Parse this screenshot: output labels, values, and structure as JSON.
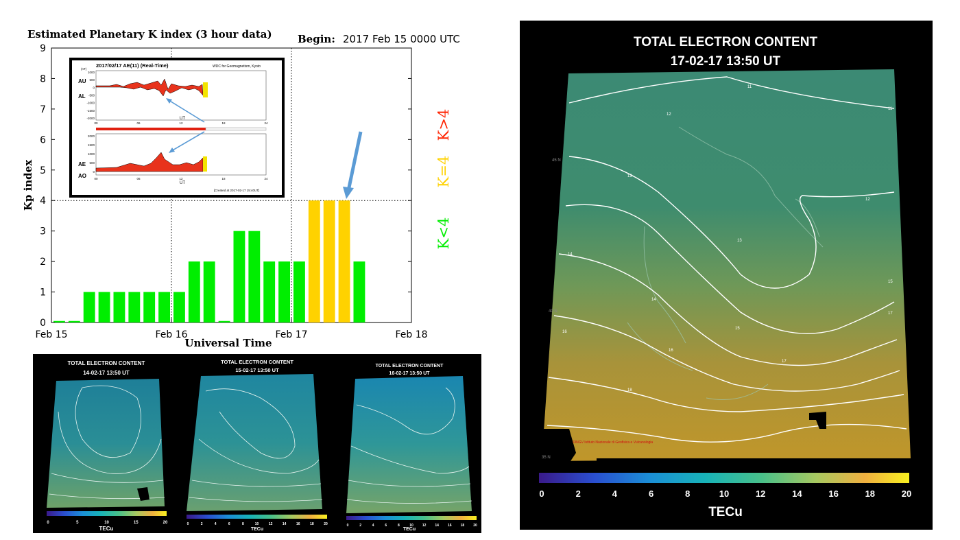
{
  "chart_data": [
    {
      "type": "bar",
      "title": "Estimated Planetary K index (3 hour data)",
      "begin_label": "Begin:",
      "begin_value": "2017 Feb 15 0000 UTC",
      "xlabel": "Universal Time",
      "ylabel": "Kp index",
      "ylim": [
        0,
        9
      ],
      "y_ticks": [
        "0",
        "1",
        "2",
        "3",
        "4",
        "5",
        "6",
        "7",
        "8",
        "9"
      ],
      "x_ticks": [
        "Feb 15",
        "Feb 16",
        "Feb 17",
        "Feb 18"
      ],
      "grid": "dotted at Kp 4 and day boundaries",
      "values": [
        0.05,
        0.05,
        1,
        1,
        1,
        1,
        1,
        1,
        1,
        2,
        2,
        0.05,
        3,
        3,
        2,
        2,
        2,
        4,
        4,
        4,
        2
      ],
      "colors": [
        "#00ee00",
        "#00ee00",
        "#00ee00",
        "#00ee00",
        "#00ee00",
        "#00ee00",
        "#00ee00",
        "#00ee00",
        "#00ee00",
        "#00ee00",
        "#00ee00",
        "#00ee00",
        "#00ee00",
        "#00ee00",
        "#00ee00",
        "#00ee00",
        "#00ee00",
        "#ffd200",
        "#ffd200",
        "#ffd200",
        "#00ee00"
      ],
      "legend": [
        {
          "label": "K<4",
          "color": "#00ee00"
        },
        {
          "label": "K=4",
          "color": "#ffd200"
        },
        {
          "label": "K>4",
          "color": "#ff2200"
        }
      ]
    },
    {
      "type": "line",
      "title": "2017/02/17  AE(11) (Real-Time)",
      "source": "WDC for Geomagnetism, Kyoto",
      "panels": [
        {
          "series": [
            "AU",
            "AL"
          ],
          "y_ticks": [
            "1000",
            "500",
            "0",
            "-500",
            "-1000",
            "-1500",
            "-2000"
          ],
          "unit": "(nT)"
        },
        {
          "series": [
            "AE",
            "AO"
          ],
          "y_ticks": [
            "2000",
            "1500",
            "1000",
            "500",
            "0"
          ]
        }
      ],
      "x_ticks": [
        "00",
        "06",
        "12",
        "18",
        "24"
      ],
      "xlabel": "UT",
      "footer": "[Created at 2017-02-17 15:40UT]"
    }
  ],
  "tec_maps": {
    "main": {
      "title": "TOTAL ELECTRON CONTENT",
      "subtitle": "17-02-17   13:50   UT",
      "colorbar_ticks": [
        "0",
        "2",
        "4",
        "6",
        "8",
        "10",
        "12",
        "14",
        "16",
        "18",
        "20"
      ],
      "unit": "TECu",
      "contours": [
        "11",
        "11",
        "12",
        "12",
        "13",
        "13",
        "14",
        "14",
        "15",
        "15",
        "16",
        "16",
        "17",
        "17",
        "18"
      ],
      "lat_labels": [
        "45 N",
        "40 N",
        "35 N"
      ],
      "credit": "©INGV Istituto Nazionale di Geofisica e Vulcanologia"
    },
    "small": [
      {
        "title": "TOTAL ELECTRON CONTENT",
        "subtitle": "14-02-17   13:50   UT",
        "colorbar_ticks": [
          "0",
          "5",
          "10",
          "15",
          "20"
        ],
        "unit": "TECu"
      },
      {
        "title": "TOTAL ELECTRON CONTENT",
        "subtitle": "15-02-17   13:50   UT",
        "colorbar_ticks": [
          "0",
          "2",
          "4",
          "6",
          "8",
          "10",
          "12",
          "14",
          "16",
          "18",
          "20"
        ],
        "unit": "TECu"
      },
      {
        "title": "TOTAL ELECTRON CONTENT",
        "subtitle": "16-02-17   13:50   UT",
        "colorbar_ticks": [
          "0",
          "2",
          "4",
          "6",
          "8",
          "10",
          "12",
          "14",
          "16",
          "18",
          "20"
        ],
        "unit": "TECu"
      }
    ]
  },
  "colors": {
    "green": "#00ee00",
    "yellow": "#ffd200",
    "red": "#ff2200",
    "arrow": "#5b9bd5"
  }
}
